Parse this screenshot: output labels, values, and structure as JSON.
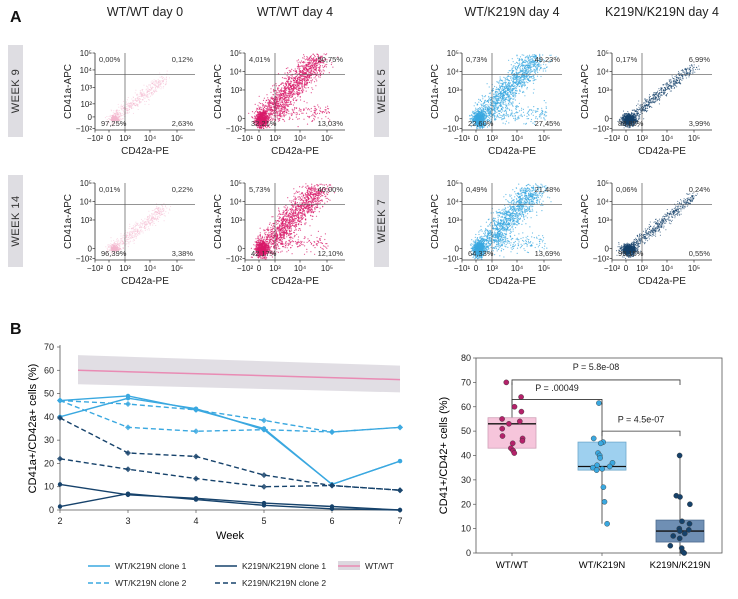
{
  "panel_a_label": "A",
  "panel_b_label": "B",
  "flow": {
    "x_title": "CD42a-PE",
    "y_title": "CD41a-APC",
    "columns": [
      {
        "title": "WT/WT day 0",
        "color": "#f4b6cd",
        "mode": "faint"
      },
      {
        "title": "WT/WT day 4",
        "color": "#d81b6a",
        "mode": "dense"
      },
      {
        "title": "WT/K219N day 4",
        "color": "#3aa8e0",
        "mode": "dense"
      },
      {
        "title": "K219N/K219N day 4",
        "color": "#16426b",
        "mode": "corner"
      }
    ],
    "row_labels": [
      {
        "left": "WEEK 9",
        "right": "WEEK 5"
      },
      {
        "left": "WEEK 14",
        "right": "WEEK 7"
      }
    ],
    "plots": [
      {
        "id": "r0c0",
        "ul": "0,00%",
        "ur": "0,12%",
        "ll": "97,25%",
        "lr": "2,63%",
        "xticks": [
          "−10²",
          "0",
          "10³",
          "10⁴",
          "10⁵"
        ],
        "yticks": [
          "10⁵",
          "10⁴",
          "10³",
          "10²",
          "0",
          "−10²"
        ]
      },
      {
        "id": "r0c1",
        "ul": "4,01%",
        "ur": "50,75%",
        "ll": "32,21%",
        "lr": "13,03%",
        "xticks": [
          "−10¹",
          "0",
          "10³",
          "10⁴",
          "10⁵"
        ],
        "yticks": [
          "10⁵",
          "10⁴",
          "10³",
          "0",
          "−10²"
        ]
      },
      {
        "id": "r0c2",
        "ul": "0,73%",
        "ur": "49,23%",
        "ll": "22,60%",
        "lr": "27,45%",
        "xticks": [
          "−10¹",
          "0",
          "10³",
          "10⁴",
          "10⁵"
        ],
        "yticks": [
          "10⁵",
          "10⁴",
          "10³",
          "0",
          "−10¹"
        ]
      },
      {
        "id": "r0c3",
        "ul": "0,17%",
        "ur": "6,99%",
        "ll": "88,85%",
        "lr": "3,99%",
        "xticks": [
          "−10²",
          "0",
          "10³",
          "10⁴",
          "10⁵"
        ],
        "yticks": [
          "10⁵",
          "10⁴",
          "10³",
          "0",
          "−10²"
        ]
      },
      {
        "id": "r1c0",
        "ul": "0,01%",
        "ur": "0,22%",
        "ll": "96,39%",
        "lr": "3,38%",
        "xticks": [
          "−10²",
          "0",
          "10³",
          "10⁴",
          "10⁵"
        ],
        "yticks": [
          "10⁵",
          "10⁴",
          "10³",
          "0",
          "−10²"
        ]
      },
      {
        "id": "r1c1",
        "ul": "5,73%",
        "ur": "40,00%",
        "ll": "42,17%",
        "lr": "12,10%",
        "xticks": [
          "−10²",
          "0",
          "10³",
          "10⁴",
          "10⁵"
        ],
        "yticks": [
          "10⁵",
          "10⁴",
          "10³",
          "0",
          "−10²"
        ]
      },
      {
        "id": "r1c2",
        "ul": "0,49%",
        "ur": "21,48%",
        "ll": "64,33%",
        "lr": "13,69%",
        "xticks": [
          "−10¹",
          "0",
          "10³",
          "10⁴",
          "10⁵"
        ],
        "yticks": [
          "10⁵",
          "10⁴",
          "10³",
          "0",
          "−10¹"
        ]
      },
      {
        "id": "r1c3",
        "ul": "0,06%",
        "ur": "0,24%",
        "ll": "99,15%",
        "lr": "0,55%",
        "xticks": [
          "−10²",
          "0",
          "10³",
          "10⁴",
          "10⁵"
        ],
        "yticks": [
          "10⁵",
          "10⁴",
          "10³",
          "0",
          "−10²"
        ]
      }
    ]
  },
  "chart_data": [
    {
      "type": "line",
      "xlabel": "Week",
      "ylabel": "CD41a+/CD42a+ cells (%)",
      "x": [
        2,
        3,
        4,
        5,
        6,
        7
      ],
      "xlim": [
        2,
        7
      ],
      "ylim": [
        0,
        70
      ],
      "yticks": [
        0,
        10,
        20,
        30,
        40,
        50,
        60,
        70
      ],
      "band": {
        "name": "WT/WT",
        "color": "#e98bb4",
        "fill": "#dcd8df",
        "mean_start": 60,
        "mean_end": 56,
        "lower_start": 54,
        "lower_end": 50.5,
        "upper_start": 66.5,
        "upper_end": 62
      },
      "series": [
        {
          "name": "WT/K219N clone 1",
          "color": "#3aa8e0",
          "dashed": false,
          "lines": [
            [
              47,
              49,
              43,
              35,
              11,
              21
            ],
            [
              40,
              48,
              43.5,
              34.5,
              11,
              21
            ]
          ]
        },
        {
          "name": "WT/K219N clone 2",
          "color": "#3aa8e0",
          "dashed": true,
          "lines": [
            [
              47,
              45.5,
              43,
              38.5,
              33.5,
              35.5
            ],
            [
              47,
              35.5,
              33.8,
              34.5,
              33.5,
              35.5
            ]
          ]
        },
        {
          "name": "K219N/K219N clone 1",
          "color": "#16426b",
          "dashed": false,
          "lines": [
            [
              11,
              6.5,
              5,
              3,
              1.5,
              0
            ],
            [
              1.5,
              7,
              4.5,
              2,
              0.5,
              0
            ]
          ]
        },
        {
          "name": "K219N/K219N clone 2",
          "color": "#16426b",
          "dashed": true,
          "lines": [
            [
              39.5,
              24.5,
              23,
              15,
              10.5,
              8.5
            ],
            [
              22,
              17.5,
              13.5,
              10,
              10.5,
              8.5
            ]
          ]
        }
      ]
    },
    {
      "type": "box",
      "ylabel": "CD41+/CD42+ cells (%)",
      "categories": [
        "WT/WT",
        "WT/K219N",
        "K219N/K219N"
      ],
      "ylim": [
        0,
        80
      ],
      "yticks": [
        0,
        10,
        20,
        30,
        40,
        50,
        60,
        70,
        80
      ],
      "boxes": [
        {
          "category": "WT/WT",
          "min": 41,
          "q1": 43,
          "median": 53,
          "q3": 55.5,
          "max": 70,
          "fill": "#f6c5db",
          "line": "#d0a0b8",
          "point_color": "#b4226a",
          "points": [
            70,
            64,
            60,
            58,
            55,
            54,
            53,
            51,
            48,
            47,
            46,
            45,
            43,
            42,
            41
          ]
        },
        {
          "category": "WT/K219N",
          "min": 12,
          "q1": 34,
          "median": 35.5,
          "q3": 45.5,
          "max": 61.5,
          "fill": "#9ed0ef",
          "line": "#6ea8cc",
          "point_color": "#3aa8e0",
          "points": [
            61.5,
            47,
            45.5,
            45,
            41,
            40,
            39,
            37,
            36,
            35.5,
            35,
            34.5,
            34,
            27,
            21,
            12
          ]
        },
        {
          "category": "K219N/K219N",
          "min": 0,
          "q1": 4.5,
          "median": 9,
          "q3": 13.5,
          "max": 40,
          "fill": "#6f8fb4",
          "line": "#4d6b8e",
          "point_color": "#16426b",
          "points": [
            40,
            23.5,
            23,
            20,
            13,
            12,
            10,
            9.5,
            9,
            8,
            7,
            6,
            3,
            2,
            0.5,
            0
          ]
        }
      ],
      "comparisons": [
        {
          "from": "WT/WT",
          "to": "K219N/K219N",
          "label": "P = 5.8e-08"
        },
        {
          "from": "WT/WT",
          "to": "WT/K219N",
          "label": "P = .00049"
        },
        {
          "from": "WT/K219N",
          "to": "K219N/K219N",
          "label": "P = 4.5e-07"
        }
      ]
    }
  ]
}
